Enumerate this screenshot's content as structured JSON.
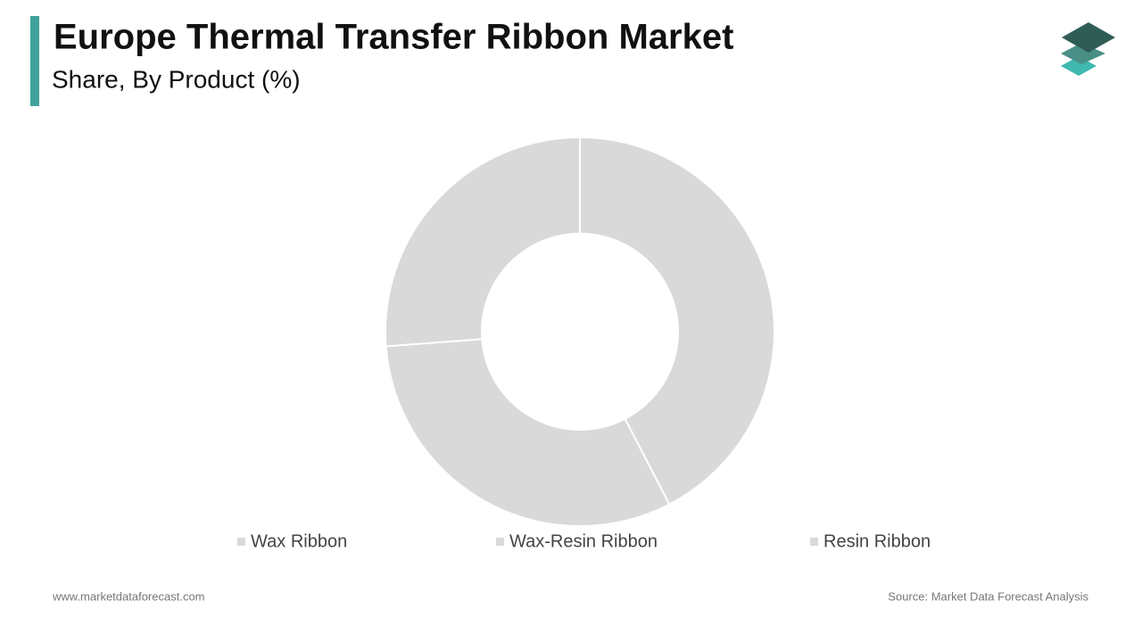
{
  "chart_data": {
    "type": "donut",
    "title": "Europe Thermal Transfer Ribbon Market",
    "subtitle": "Share, By Product (%)",
    "categories": [
      "Wax Ribbon",
      "Wax-Resin Ribbon",
      "Resin Ribbon"
    ],
    "values": [
      42.4,
      31.4,
      26.2
    ],
    "colors": [
      "#d9d9d9",
      "#d9d9d9",
      "#d9d9d9"
    ],
    "legend": "bottom"
  },
  "footer": {
    "website": "www.marketdataforecast.com",
    "source": "Source: Market Data Forecast Analysis"
  }
}
